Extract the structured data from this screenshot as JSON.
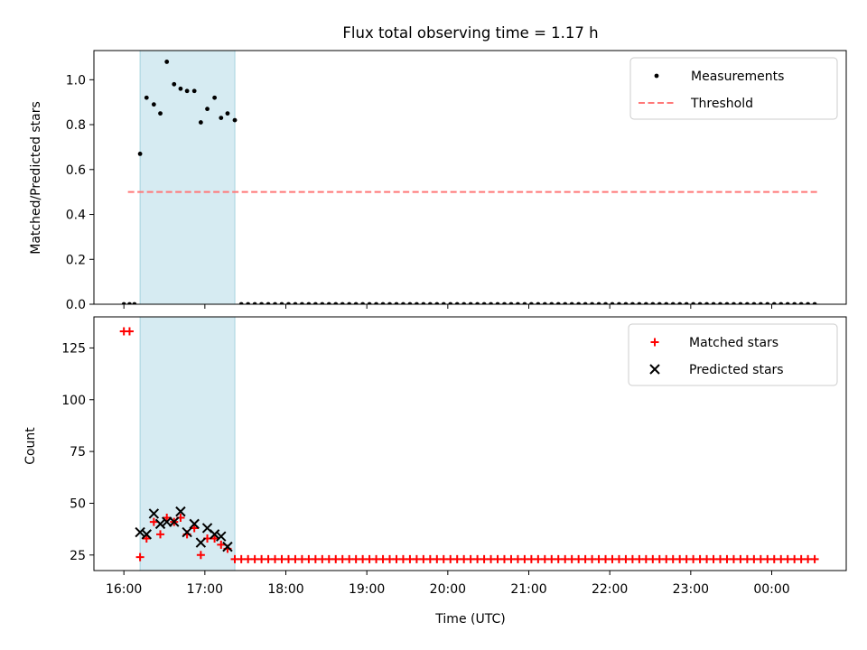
{
  "chart_data": [
    {
      "type": "scatter",
      "title": "Flux total observing time = 1.17 h",
      "xlabel": "",
      "ylabel": "Matched/Predicted stars",
      "ylim": [
        0,
        1.13
      ],
      "yticks": [
        0.0,
        0.2,
        0.4,
        0.6,
        0.8,
        1.0
      ],
      "ytick_labels": [
        "0.0",
        "0.2",
        "0.4",
        "0.6",
        "0.8",
        "1.0"
      ],
      "xlim_hours": [
        15.63,
        24.92
      ],
      "highlight_span_hours": [
        16.2,
        17.37
      ],
      "legend_position": "top-right",
      "grid": false,
      "series": [
        {
          "name": "Measurements",
          "kind": "scatter",
          "color": "#000000",
          "x_hours": [
            16.0,
            16.07,
            16.13,
            16.2,
            16.28,
            16.37,
            16.45,
            16.53,
            16.62,
            16.7,
            16.78,
            16.87,
            16.95,
            17.03,
            17.12,
            17.2,
            17.28,
            17.37
          ],
          "y": [
            0.0,
            0.0,
            0.0,
            0.67,
            0.92,
            0.89,
            0.85,
            1.08,
            0.98,
            0.96,
            0.95,
            0.95,
            0.81,
            0.87,
            0.92,
            0.83,
            0.85,
            0.82
          ],
          "zero_run": {
            "start_hours": 17.45,
            "end_hours": 24.57,
            "step_hours": 0.0833,
            "value": 0.0
          }
        },
        {
          "name": "Threshold",
          "kind": "dashed-line",
          "color": "#ff7777",
          "x_hours": [
            16.05,
            24.57
          ],
          "y": [
            0.5,
            0.5
          ]
        }
      ]
    },
    {
      "type": "scatter",
      "title": "",
      "xlabel": "Time (UTC)",
      "ylabel": "Count",
      "ylim": [
        17.5,
        140
      ],
      "yticks": [
        25,
        50,
        75,
        100,
        125
      ],
      "ytick_labels": [
        "25",
        "50",
        "75",
        "100",
        "125"
      ],
      "xlim_hours": [
        15.63,
        24.92
      ],
      "xticks_hours": [
        16,
        17,
        18,
        19,
        20,
        21,
        22,
        23,
        24
      ],
      "xtick_labels": [
        "16:00",
        "17:00",
        "18:00",
        "19:00",
        "20:00",
        "21:00",
        "22:00",
        "23:00",
        "00:00"
      ],
      "highlight_span_hours": [
        16.2,
        17.37
      ],
      "legend_position": "top-right",
      "grid": false,
      "series": [
        {
          "name": "Matched stars",
          "kind": "plus",
          "color": "#ff0000",
          "x_hours": [
            16.0,
            16.07,
            16.2,
            16.28,
            16.37,
            16.45,
            16.53,
            16.62,
            16.7,
            16.78,
            16.87,
            16.95,
            17.03,
            17.12,
            17.2,
            17.28,
            17.37
          ],
          "y": [
            133,
            133,
            24,
            33,
            41,
            35,
            43,
            41,
            43,
            35,
            38,
            25,
            33,
            33,
            30,
            28,
            23
          ],
          "run": {
            "start_hours": 17.45,
            "end_hours": 24.57,
            "step_hours": 0.0833,
            "value": 23
          }
        },
        {
          "name": "Predicted stars",
          "kind": "x",
          "color": "#000000",
          "x_hours": [
            16.2,
            16.28,
            16.37,
            16.45,
            16.53,
            16.62,
            16.7,
            16.78,
            16.87,
            16.95,
            17.03,
            17.12,
            17.2,
            17.28
          ],
          "y": [
            36,
            35,
            45,
            40,
            41,
            41,
            46,
            36,
            40,
            31,
            38,
            35,
            34,
            29
          ]
        }
      ]
    }
  ]
}
